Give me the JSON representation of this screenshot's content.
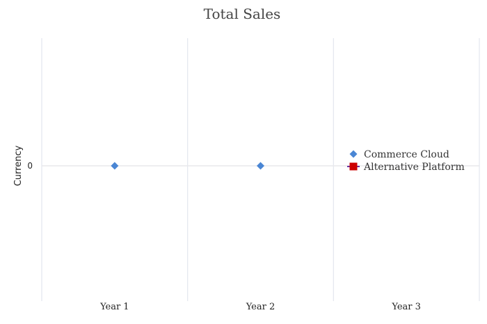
{
  "chart_data": {
    "type": "line",
    "title": "Total Sales",
    "xlabel": "",
    "ylabel": "Currency",
    "categories": [
      "Year 1",
      "Year 2",
      "Year 3"
    ],
    "yticks": [
      "0"
    ],
    "series": [
      {
        "name": "Commerce Cloud",
        "values": [
          0,
          0,
          null
        ],
        "color": "#4a86d4",
        "marker": "diamond"
      },
      {
        "name": "Alternative Platform",
        "values": [
          null,
          null,
          null
        ],
        "color": "#cc0000",
        "marker": "square"
      }
    ],
    "grid": true,
    "legend": "right"
  }
}
